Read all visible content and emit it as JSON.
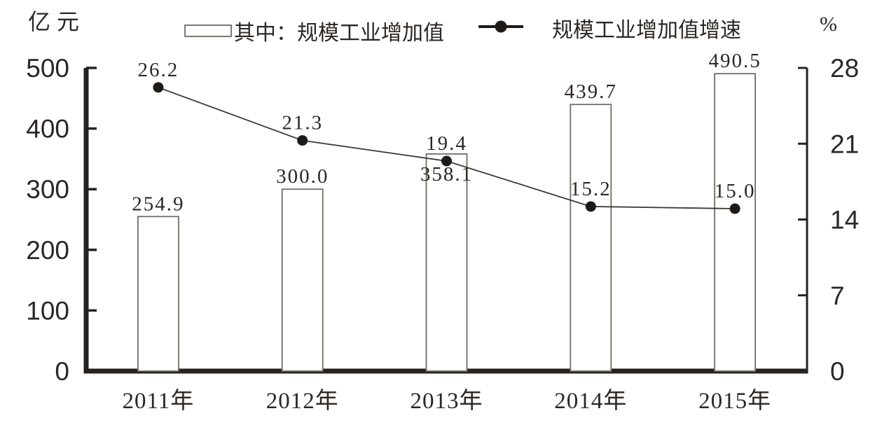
{
  "chart_data": {
    "type": "bar",
    "subtype": "bar-line-combo",
    "categories": [
      "2011年",
      "2012年",
      "2013年",
      "2014年",
      "2015年"
    ],
    "series": [
      {
        "name": "其中：规模工业增加值",
        "type": "bar",
        "axis": "left",
        "values": [
          254.9,
          300.0,
          358.1,
          439.7,
          490.5
        ],
        "value_labels": [
          "254.9",
          "300.0",
          "358.1",
          "439.7",
          "490.5"
        ]
      },
      {
        "name": "规模工业增加值增速",
        "type": "line",
        "axis": "right",
        "values": [
          26.2,
          21.3,
          19.4,
          15.2,
          15.0
        ],
        "value_labels": [
          "26.2",
          "21.3",
          "19.4",
          "15.2",
          "15.0"
        ]
      }
    ],
    "left_axis": {
      "title": "亿元",
      "min": 0,
      "max": 500,
      "ticks": [
        0,
        100,
        200,
        300,
        400,
        500
      ],
      "tick_labels": [
        "0",
        "100",
        "200",
        "300",
        "400",
        "500"
      ]
    },
    "right_axis": {
      "title": "%",
      "min": 0,
      "max": 28,
      "ticks": [
        0,
        7,
        14,
        21,
        28
      ],
      "tick_labels": [
        "0",
        "7",
        "14",
        "21",
        "28"
      ]
    },
    "legend_position": "top",
    "grid": false,
    "colors": {
      "bar_fill": "#ffffff",
      "bar_border": "#716d68",
      "line": "#3c3835",
      "marker": "#1d1a17",
      "axis": "#262220",
      "text": "#2b2724"
    }
  }
}
